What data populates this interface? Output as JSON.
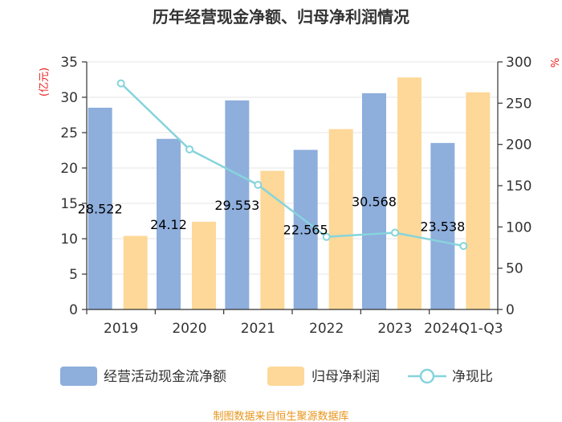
{
  "chart_data": {
    "type": "bar",
    "title": "历年经营现金净额、归母净利润情况",
    "categories": [
      "2019",
      "2020",
      "2021",
      "2022",
      "2023",
      "2024Q1-Q3"
    ],
    "left_axis": {
      "unit": "(亿元)",
      "min": 0,
      "max": 35,
      "step": 5,
      "ticks": [
        "0",
        "5",
        "10",
        "15",
        "20",
        "25",
        "30",
        "35"
      ]
    },
    "right_axis": {
      "unit": "%",
      "min": 0,
      "max": 300,
      "step": 50,
      "ticks": [
        "0",
        "50",
        "100",
        "150",
        "200",
        "250",
        "300"
      ]
    },
    "series": [
      {
        "name": "经营活动现金流净额",
        "type": "bar",
        "axis": "left",
        "color": "#8eaedc",
        "values": [
          28.522,
          24.12,
          29.553,
          22.565,
          30.568,
          23.538
        ],
        "labels": [
          "28.522",
          "24.12",
          "29.553",
          "22.565",
          "30.568",
          "23.538"
        ]
      },
      {
        "name": "归母净利润",
        "type": "bar",
        "axis": "left",
        "color": "#fdd898",
        "values": [
          10.4,
          12.4,
          19.6,
          25.5,
          32.8,
          30.7
        ]
      },
      {
        "name": "净现比",
        "type": "line",
        "axis": "right",
        "color": "#86d4dc",
        "values": [
          274,
          194,
          151,
          88,
          93,
          77
        ]
      }
    ],
    "source": "制图数据来自恒生聚源数据库"
  }
}
